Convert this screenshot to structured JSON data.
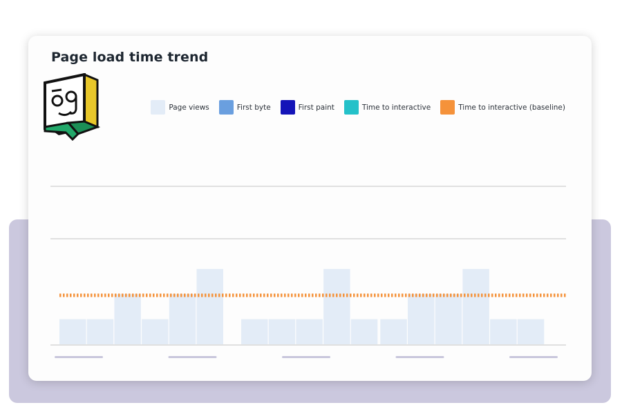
{
  "title": "Page load time trend",
  "logo_icon": "open-graph-logo-icon",
  "colors": {
    "page_views": "#e3ecf7",
    "first_byte": "#6a9fdf",
    "first_paint": "#1414b8",
    "time_to_interactive": "#24c1c9",
    "baseline": "#f5923a",
    "grid": "#d6d6d6",
    "tick": "#c8c6dc"
  },
  "legend": [
    {
      "label": "Page views",
      "color": "#e3ecf7"
    },
    {
      "label": "First byte",
      "color": "#6a9fdf"
    },
    {
      "label": "First paint",
      "color": "#1414b8"
    },
    {
      "label": "Time to interactive",
      "color": "#24c1c9"
    },
    {
      "label": "Time to interactive (baseline)",
      "color": "#f5923a"
    }
  ],
  "chart_data": {
    "type": "bar",
    "title": "Page load time trend",
    "xlabel": "",
    "ylabel": "",
    "grid": true,
    "legend_position": "top-right",
    "ylim": [
      0,
      6
    ],
    "groups": [
      {
        "values": [
          2,
          2,
          4,
          2,
          4,
          6
        ]
      },
      {
        "values": [
          2,
          2,
          2,
          6,
          2
        ]
      },
      {
        "values": [
          2,
          4,
          4,
          6,
          2,
          2
        ]
      }
    ],
    "series": [
      {
        "name": "Page views",
        "values": [
          2,
          2,
          4,
          2,
          4,
          6,
          2,
          2,
          2,
          6,
          2,
          2,
          4,
          4,
          6,
          2,
          2
        ]
      },
      {
        "name": "Time to interactive (baseline)",
        "type": "line",
        "value": 3.9
      }
    ]
  }
}
